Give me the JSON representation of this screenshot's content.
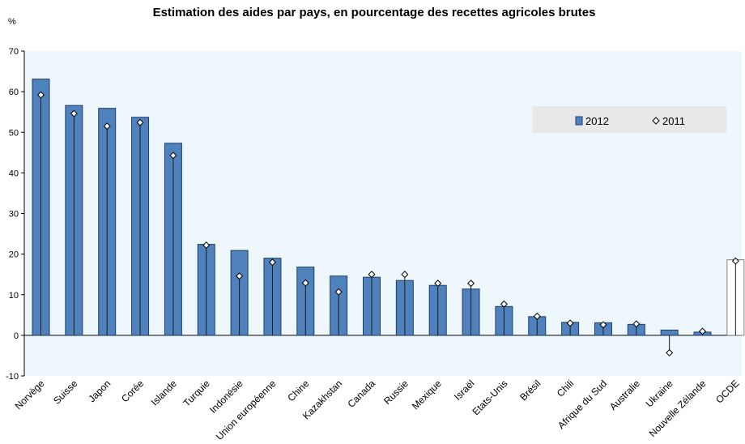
{
  "chart_data": {
    "type": "bar",
    "title": "Estimation des aides par pays, en pourcentage des recettes agricoles brutes",
    "ylabel": "%",
    "xlabel": "",
    "ylim": [
      -10,
      70
    ],
    "yticks": [
      -10,
      0,
      10,
      20,
      30,
      40,
      50,
      60,
      70
    ],
    "grid": false,
    "legend_position": "top-right",
    "categories": [
      "Norvège",
      "Suisse",
      "Japon",
      "Corée",
      "Islande",
      "Turquie",
      "Indonésie",
      "Union européenne",
      "Chine",
      "Kazakhstan",
      "Canada",
      "Russie",
      "Mexique",
      "Israël",
      "Etats-Unis",
      "Brésil",
      "Chili",
      "Afrique du Sud",
      "Australie",
      "Ukraine",
      "Nouvelle Zélande",
      "OCDE"
    ],
    "series": [
      {
        "name": "2012",
        "marker": "bar",
        "values": [
          63.1,
          56.6,
          55.9,
          53.7,
          47.3,
          22.4,
          20.9,
          19.0,
          16.8,
          14.6,
          14.3,
          13.5,
          12.3,
          11.4,
          7.1,
          4.6,
          3.2,
          3.1,
          2.7,
          1.3,
          0.8,
          18.6
        ]
      },
      {
        "name": "2011",
        "marker": "diamond",
        "values": [
          59.2,
          54.6,
          51.5,
          52.4,
          44.3,
          22.2,
          14.6,
          18.0,
          12.9,
          10.7,
          15.0,
          15.0,
          12.8,
          12.8,
          7.7,
          4.7,
          3.0,
          2.6,
          2.8,
          -4.3,
          1.0,
          18.3
        ]
      }
    ],
    "colors": {
      "bar": "#4f81bd",
      "bar_edge": "#1f3d6b",
      "highlight_bar": "#ffffff",
      "highlight_edge": "#7f7f7f",
      "plot_bg": "#eef7fc",
      "legend_bg": "#e8e8e8"
    },
    "highlight_category": "OCDE"
  }
}
